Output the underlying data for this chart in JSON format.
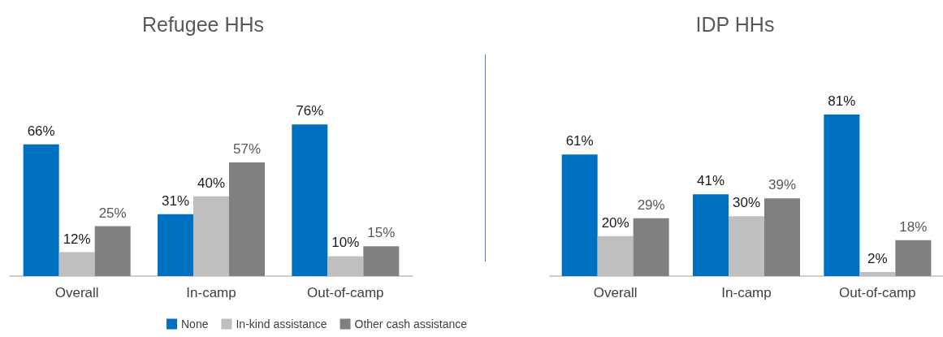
{
  "chart_data": [
    {
      "type": "bar",
      "title": "Refugee HHs",
      "categories": [
        "Overall",
        "In-camp",
        "Out-of-camp"
      ],
      "tick_labels": "x",
      "grid": false,
      "legend": "bottom",
      "series": [
        {
          "name": "None",
          "color": "#0070c0",
          "values": [
            66,
            31,
            76
          ],
          "value_labels": [
            "66%",
            "31%",
            "76%"
          ]
        },
        {
          "name": "In-kind assistance",
          "color": "#bfbfbf",
          "values": [
            12,
            40,
            10
          ],
          "value_labels": [
            "12%",
            "40%",
            "10%"
          ]
        },
        {
          "name": "Other cash assistance",
          "color": "#808080",
          "values": [
            25,
            57,
            15
          ],
          "value_labels": [
            "25%",
            "57%",
            "15%"
          ]
        }
      ]
    },
    {
      "type": "bar",
      "title": "IDP HHs",
      "categories": [
        "Overall",
        "In-camp",
        "Out-of-camp"
      ],
      "tick_labels": "x",
      "grid": false,
      "legend": false,
      "series": [
        {
          "color": "#0070c0",
          "values": [
            61,
            41,
            81
          ],
          "value_labels": [
            "61%",
            "41%",
            "81%"
          ]
        },
        {
          "color": "#bfbfbf",
          "values": [
            20,
            30,
            2
          ],
          "value_labels": [
            "20%",
            "30%",
            "2%"
          ]
        },
        {
          "color": "#808080",
          "values": [
            29,
            39,
            18
          ],
          "value_labels": [
            "29%",
            "39%",
            "18%"
          ]
        }
      ]
    }
  ]
}
